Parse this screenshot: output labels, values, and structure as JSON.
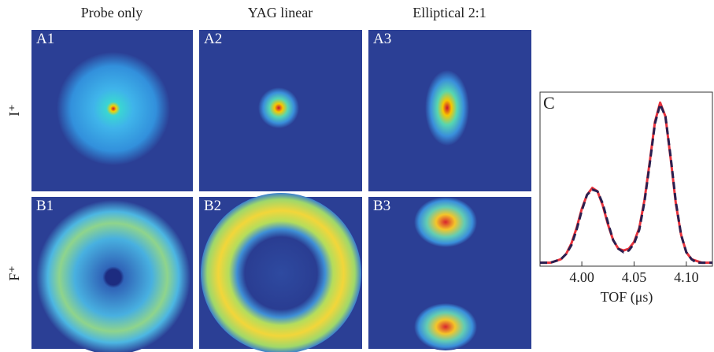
{
  "columns": [
    "Probe only",
    "YAG linear",
    "Elliptical 2:1"
  ],
  "rows": [
    "I⁺",
    "F⁺"
  ],
  "panels": [
    "A1",
    "A2",
    "A3",
    "B1",
    "B2",
    "B3"
  ],
  "chart_data": {
    "type": "line",
    "panel_label": "C",
    "xlabel": "TOF (μs)",
    "x": [
      3.96,
      3.965,
      3.97,
      3.975,
      3.98,
      3.985,
      3.99,
      3.995,
      4.0,
      4.005,
      4.01,
      4.015,
      4.02,
      4.025,
      4.03,
      4.035,
      4.04,
      4.045,
      4.05,
      4.055,
      4.06,
      4.065,
      4.07,
      4.075,
      4.08,
      4.085,
      4.09,
      4.095,
      4.1,
      4.105,
      4.11,
      4.115,
      4.12,
      4.125
    ],
    "series": [
      {
        "color": "#e8333c",
        "dashed": false,
        "values": [
          0.02,
          0.02,
          0.02,
          0.03,
          0.04,
          0.07,
          0.13,
          0.22,
          0.33,
          0.41,
          0.45,
          0.43,
          0.35,
          0.24,
          0.15,
          0.1,
          0.09,
          0.1,
          0.14,
          0.22,
          0.38,
          0.6,
          0.83,
          0.94,
          0.86,
          0.62,
          0.36,
          0.18,
          0.08,
          0.04,
          0.03,
          0.02,
          0.02,
          0.02
        ]
      },
      {
        "color": "#2a1f4f",
        "dashed": true,
        "values": [
          0.02,
          0.02,
          0.02,
          0.03,
          0.04,
          0.07,
          0.12,
          0.21,
          0.32,
          0.41,
          0.44,
          0.43,
          0.36,
          0.25,
          0.15,
          0.1,
          0.08,
          0.09,
          0.13,
          0.21,
          0.37,
          0.59,
          0.82,
          0.93,
          0.86,
          0.63,
          0.37,
          0.18,
          0.08,
          0.04,
          0.02,
          0.02,
          0.02,
          0.02
        ]
      }
    ],
    "xlim": [
      3.96,
      4.125
    ],
    "ylim": [
      0,
      1
    ],
    "xticks": [
      {
        "value": 4,
        "label": "4.00"
      },
      4.05,
      {
        "value": 4.1,
        "label": "4.10"
      }
    ]
  }
}
